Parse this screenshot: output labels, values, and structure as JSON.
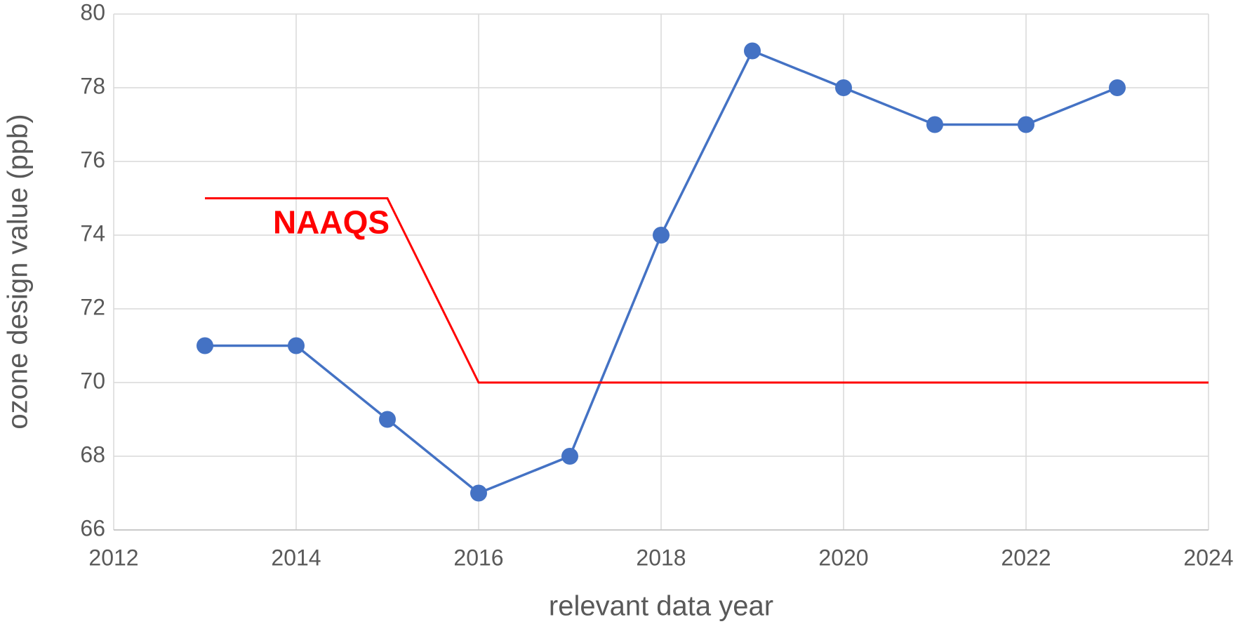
{
  "chart_data": {
    "type": "line",
    "x_label": "relevant data year",
    "y_label": "ozone design value (ppb)",
    "xlim": [
      2012,
      2024
    ],
    "xticks": [
      2012,
      2014,
      2016,
      2018,
      2020,
      2022,
      2024
    ],
    "ylim": [
      66,
      80
    ],
    "yticks": [
      66,
      68,
      70,
      72,
      74,
      76,
      78,
      80
    ],
    "grid": true,
    "series": [
      {
        "color": "#4472c4",
        "markers": true,
        "x": [
          2013,
          2014,
          2015,
          2016,
          2017,
          2018,
          2019,
          2020,
          2021,
          2022,
          2023
        ],
        "values": [
          71,
          71,
          69,
          67,
          68,
          74,
          79,
          78,
          77,
          77,
          78
        ]
      },
      {
        "name": "NAAQS",
        "color": "#ff0000",
        "markers": false,
        "x": [
          2013,
          2015,
          2016,
          2024
        ],
        "values": [
          75,
          75,
          70,
          70
        ]
      }
    ]
  }
}
